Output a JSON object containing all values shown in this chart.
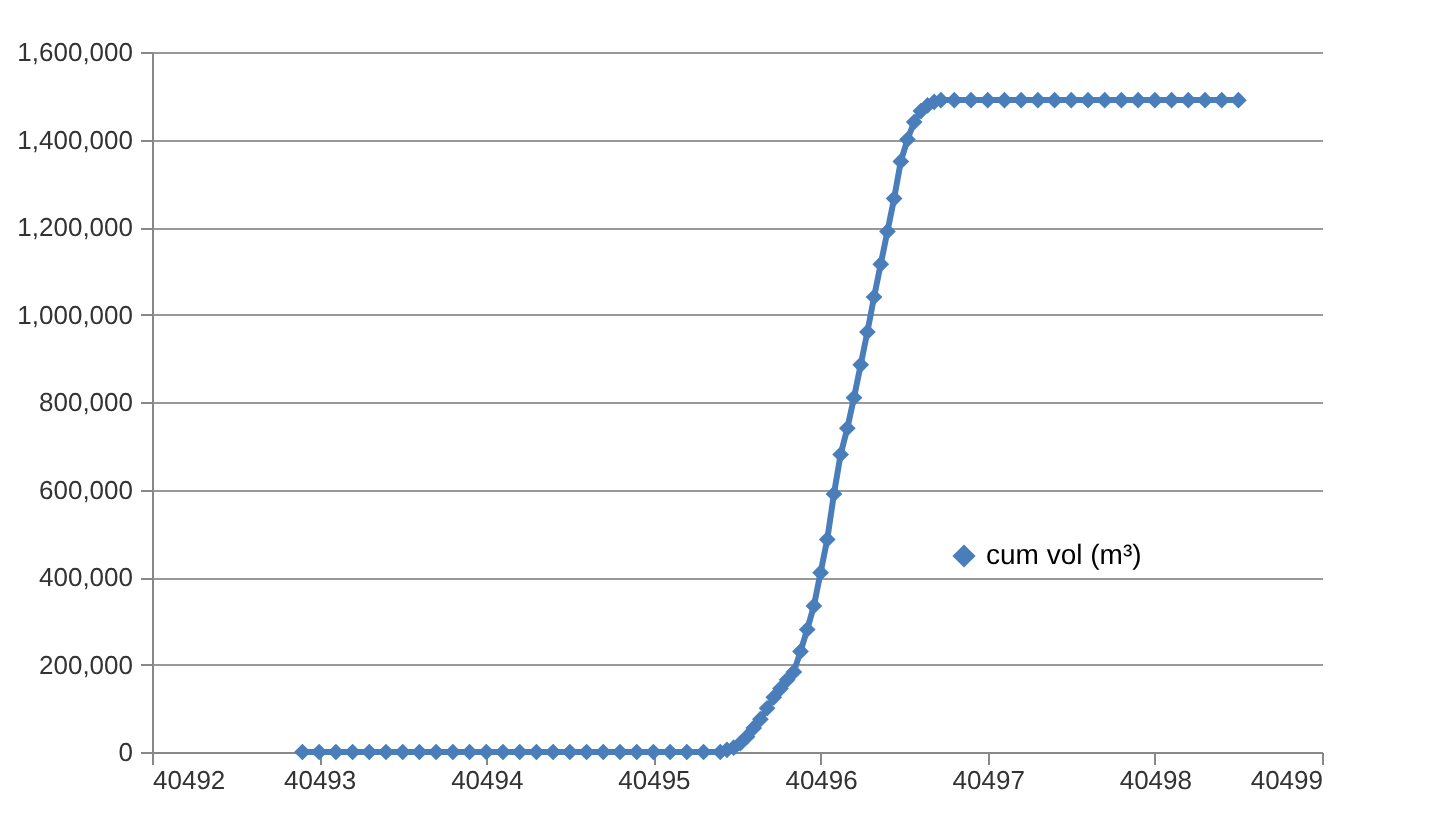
{
  "chart_data": {
    "type": "line",
    "xlim": [
      40492,
      40499
    ],
    "xticks": [
      40492,
      40493,
      40494,
      40495,
      40496,
      40497,
      40498,
      40499
    ],
    "ylim": [
      0,
      1600000
    ],
    "yticks": [
      0,
      {
        "value": 200000,
        "label": "200,000"
      },
      {
        "value": 400000,
        "label": "400,000"
      },
      {
        "value": 600000,
        "label": "600,000"
      },
      {
        "value": 800000,
        "label": "800,000"
      },
      {
        "value": 1000000,
        "label": "1,000,000"
      },
      {
        "value": 1200000,
        "label": "1,200,000"
      },
      {
        "value": 1400000,
        "label": "1,400,000"
      },
      {
        "value": 1600000,
        "label": "1,600,000"
      }
    ],
    "grid": "y",
    "legend": "bottom right",
    "marker": "diamond",
    "line_style": "solid",
    "series": [
      {
        "name": "cum vol (m³)",
        "color": "#4a7ebb",
        "x": [
          40492.9,
          40493.0,
          40493.1,
          40493.2,
          40493.3,
          40493.4,
          40493.5,
          40493.6,
          40493.7,
          40493.8,
          40493.9,
          40494.0,
          40494.1,
          40494.2,
          40494.3,
          40494.4,
          40494.5,
          40494.6,
          40494.7,
          40494.8,
          40494.9,
          40495.0,
          40495.1,
          40495.2,
          40495.3,
          40495.4,
          40495.44,
          40495.48,
          40495.52,
          40495.56,
          40495.6,
          40495.64,
          40495.68,
          40495.72,
          40495.76,
          40495.8,
          40495.84,
          40495.88,
          40495.92,
          40495.96,
          40496.0,
          40496.04,
          40496.08,
          40496.12,
          40496.16,
          40496.2,
          40496.24,
          40496.28,
          40496.32,
          40496.36,
          40496.4,
          40496.44,
          40496.48,
          40496.52,
          40496.56,
          40496.6,
          40496.64,
          40496.68,
          40496.72,
          40496.8,
          40496.9,
          40497.0,
          40497.1,
          40497.2,
          40497.3,
          40497.4,
          40497.5,
          40497.6,
          40497.7,
          40497.8,
          40497.9,
          40498.0,
          40498.1,
          40498.2,
          40498.3,
          40498.4,
          40498.5
        ],
        "values": [
          0,
          0,
          0,
          0,
          0,
          0,
          0,
          0,
          0,
          0,
          0,
          0,
          0,
          0,
          0,
          0,
          0,
          0,
          0,
          0,
          0,
          0,
          0,
          0,
          0,
          0,
          5000,
          10000,
          20000,
          35000,
          55000,
          75000,
          100000,
          125000,
          145000,
          165000,
          183000,
          230000,
          280000,
          334000,
          410000,
          486000,
          590000,
          680000,
          740000,
          810000,
          885000,
          960000,
          1040000,
          1115000,
          1190000,
          1265000,
          1350000,
          1400000,
          1440000,
          1465000,
          1478000,
          1486000,
          1490000,
          1490000,
          1490000,
          1490000,
          1490000,
          1490000,
          1490000,
          1490000,
          1490000,
          1490000,
          1490000,
          1490000,
          1490000,
          1490000,
          1490000,
          1490000,
          1490000,
          1490000,
          1490000
        ]
      }
    ]
  }
}
